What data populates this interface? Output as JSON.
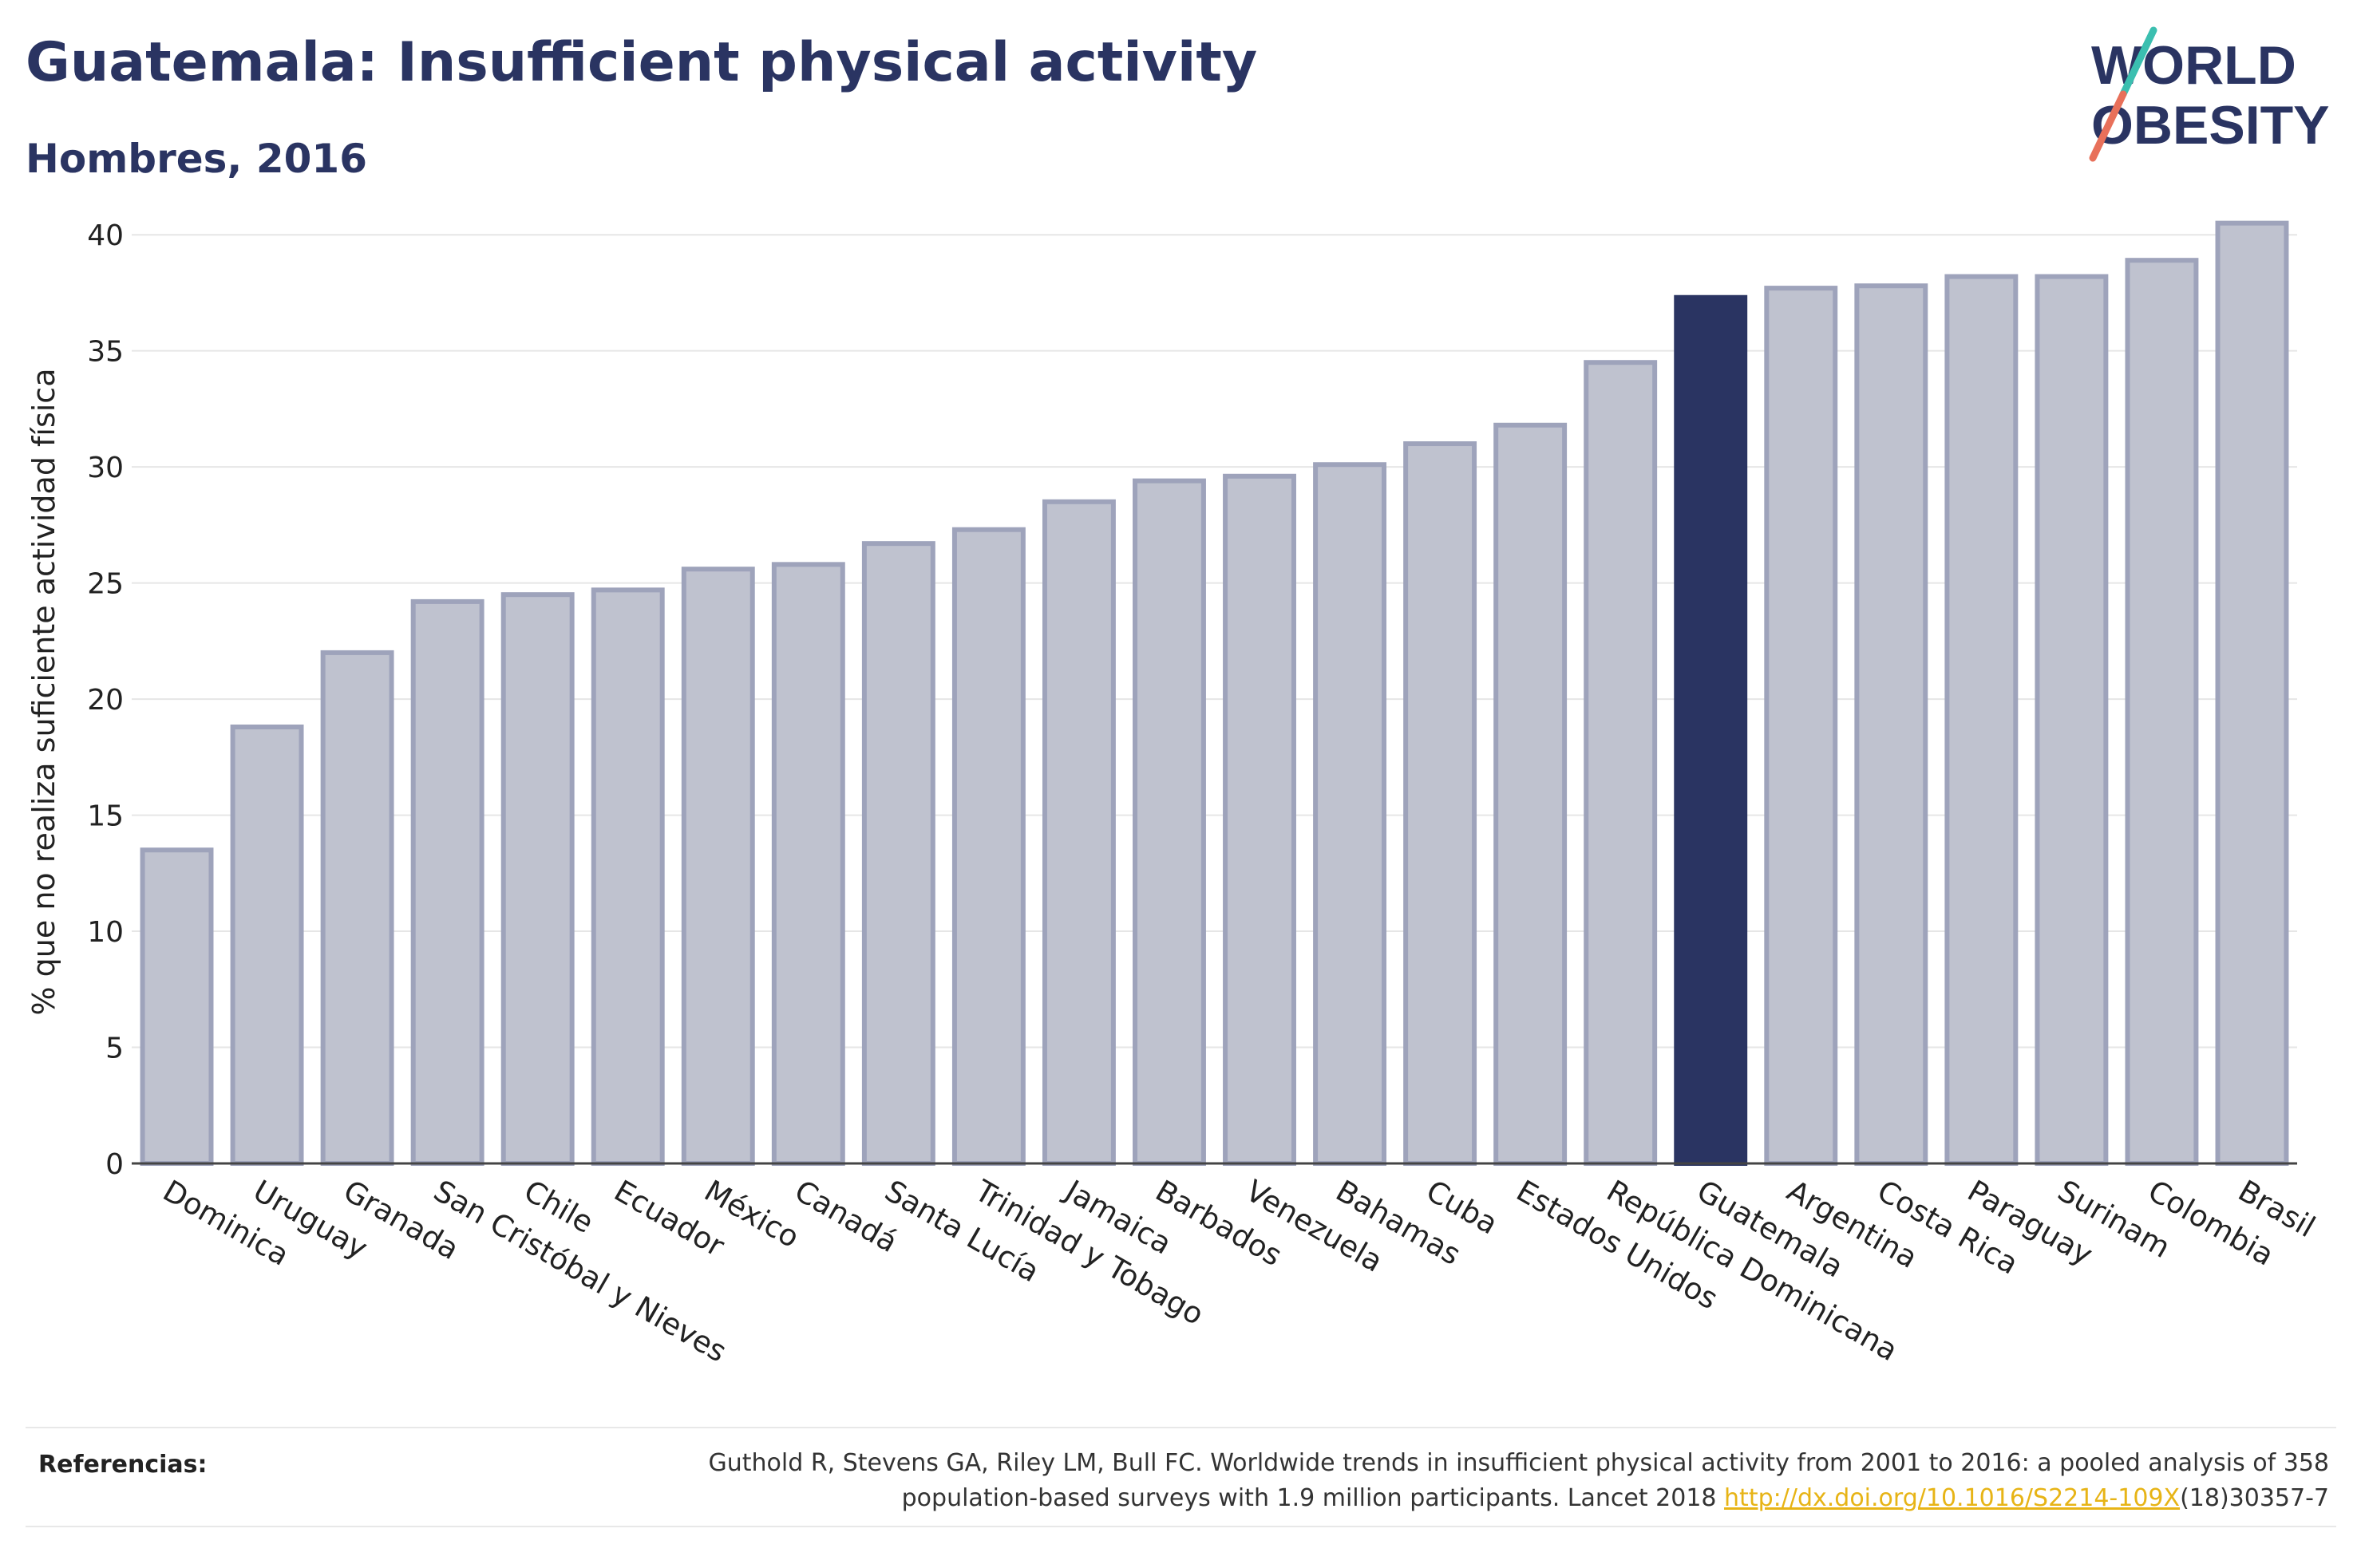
{
  "header": {
    "title": "Guatemala: Insufficient physical activity",
    "subtitle": "Hombres, 2016"
  },
  "logo": {
    "line1": "WORLD",
    "line2": "OBESITY",
    "color_text": "#2a3462",
    "color_slash_top": "#3bbfb0",
    "color_slash_bottom": "#e8705a"
  },
  "chart_data": {
    "type": "bar",
    "ylabel": "% que no realiza suficiente actividad física",
    "xlabel": "",
    "ylim": [
      0,
      42
    ],
    "yticks": [
      0,
      5,
      10,
      15,
      20,
      25,
      30,
      35,
      40
    ],
    "grid": true,
    "highlight": "Guatemala",
    "colors": {
      "bar": "#bfc2cf",
      "bar_stroke": "#9ea3bb",
      "highlight": "#2a3462"
    },
    "categories": [
      "Dominica",
      "Uruguay",
      "Granada",
      "San Cristóbal y Nieves",
      "Chile",
      "Ecuador",
      "México",
      "Canadá",
      "Santa Lucía",
      "Trinidad y Tobago",
      "Jamaica",
      "Barbados",
      "Venezuela",
      "Bahamas",
      "Cuba",
      "Estados Unidos",
      "República Dominicana",
      "Guatemala",
      "Argentina",
      "Costa Rica",
      "Paraguay",
      "Surinam",
      "Colombia",
      "Brasil"
    ],
    "values": [
      13.5,
      18.8,
      22.0,
      24.2,
      24.5,
      24.7,
      25.6,
      25.8,
      26.7,
      27.3,
      28.5,
      29.4,
      29.6,
      30.1,
      31.0,
      31.8,
      34.5,
      37.3,
      37.7,
      37.8,
      38.2,
      38.2,
      38.9,
      40.5
    ]
  },
  "footer": {
    "ref_label": "Referencias:",
    "ref_text_1": "Guthold R, Stevens GA, Riley LM, Bull FC. Worldwide trends in insufficient physical activity from 2001 to 2016: a pooled analysis of 358",
    "ref_text_2": "population-based surveys with 1.9 million participants. Lancet 2018 ",
    "ref_link": "http://dx.doi.org/10.1016/S2214-109X",
    "ref_text_3": "(18)30357-7"
  }
}
